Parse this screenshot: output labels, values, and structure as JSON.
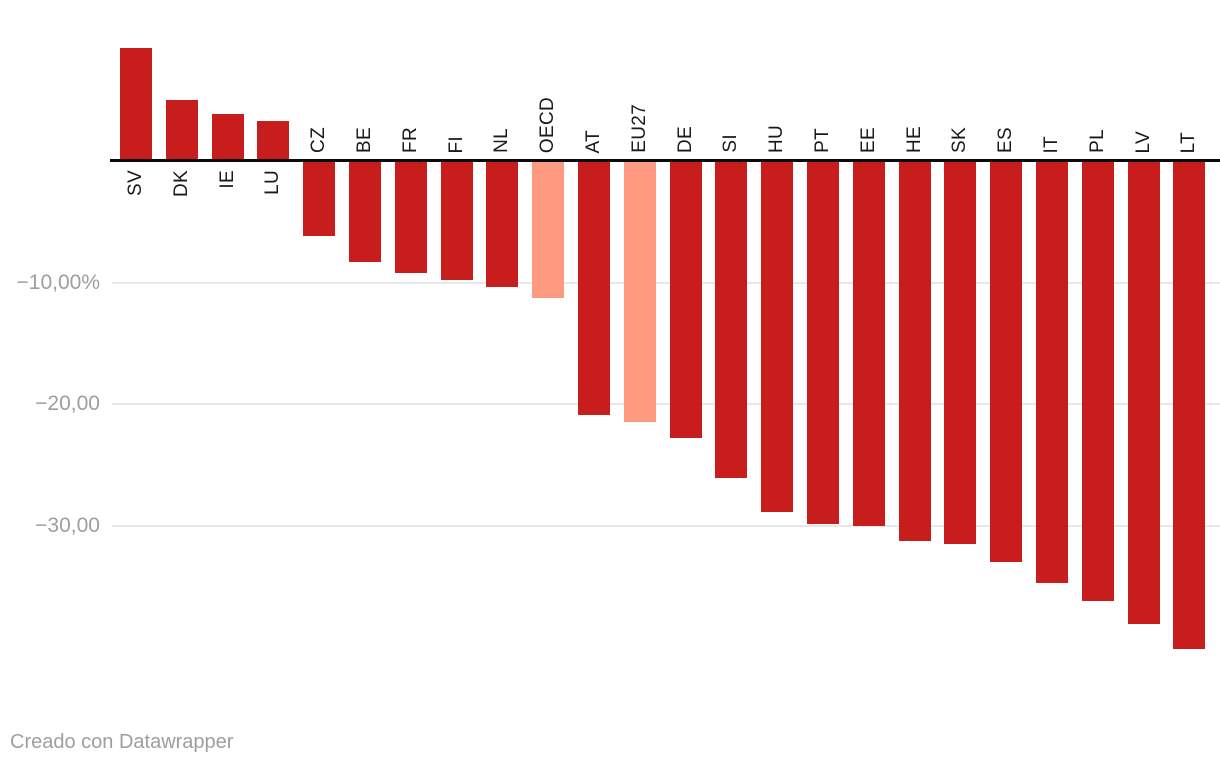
{
  "chart_data": {
    "type": "bar",
    "title": "",
    "categories": [
      "SV",
      "DK",
      "IE",
      "LU",
      "CZ",
      "BE",
      "FR",
      "FI",
      "NL",
      "OECD",
      "AT",
      "EU27",
      "DE",
      "SI",
      "HU",
      "PT",
      "EE",
      "HE",
      "SK",
      "ES",
      "IT",
      "PL",
      "LV",
      "LT"
    ],
    "values": [
      9.3,
      5.0,
      3.9,
      3.3,
      -6.2,
      -8.3,
      -9.2,
      -9.8,
      -10.4,
      -11.3,
      -20.9,
      -21.5,
      -22.8,
      -26.1,
      -28.9,
      -29.9,
      -30.0,
      -31.3,
      -31.5,
      -33.0,
      -34.7,
      -36.2,
      -38.1,
      -40.2
    ],
    "highlight_categories": [
      "OECD",
      "EU27"
    ],
    "unit": "%",
    "xlabel": "",
    "ylabel": "",
    "ylim": [
      -42,
      9.6
    ],
    "grid": "horizontal",
    "legend": "none",
    "yticks": [
      {
        "value": -10,
        "label": "−10,00%"
      },
      {
        "value": -20,
        "label": "−20,00"
      },
      {
        "value": -30,
        "label": "−30,00"
      }
    ],
    "colors": {
      "bar": "#c71e1d",
      "highlight": "#fe9a80",
      "gridline": "#e8e8e8",
      "axis": "#0a0a0a",
      "tick_label": "#9e9e9e",
      "category_label": "#1a1a1a"
    }
  },
  "footer": {
    "credit": "Creado con Datawrapper"
  }
}
